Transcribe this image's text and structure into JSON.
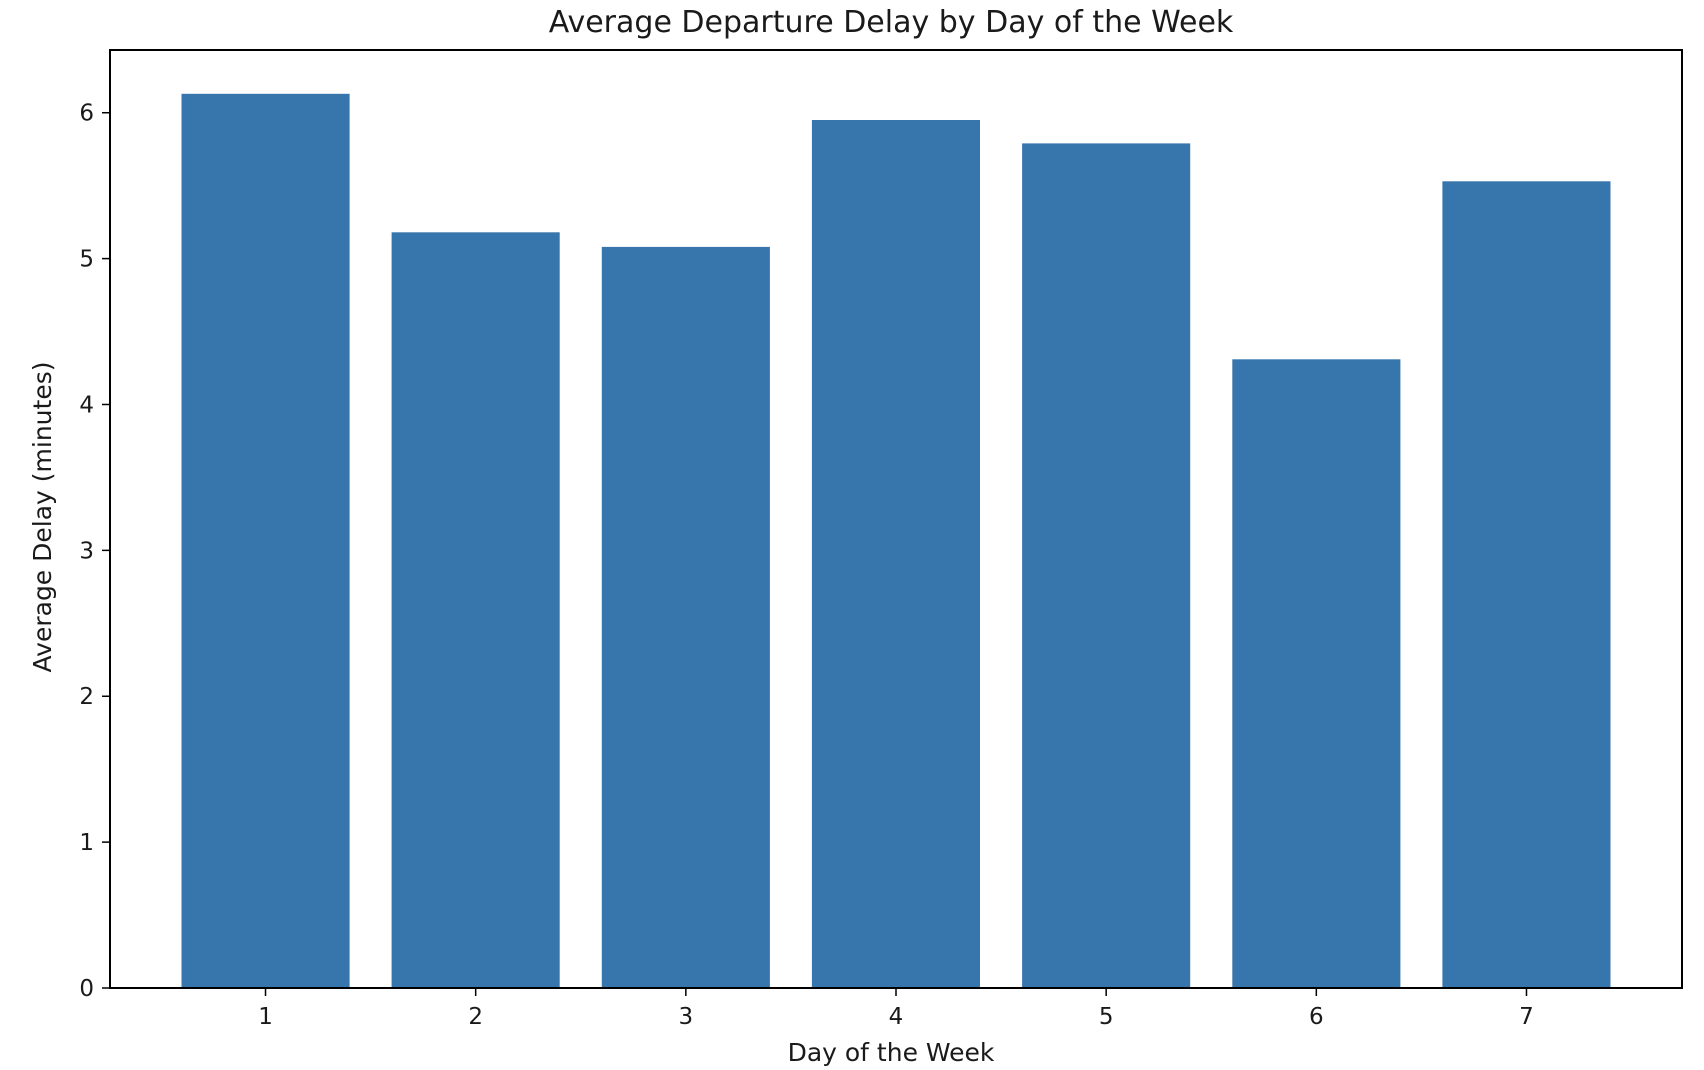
{
  "chart_data": {
    "type": "bar",
    "title": "Average Departure Delay by Day of the Week",
    "xlabel": "Day of the Week",
    "ylabel": "Average Delay (minutes)",
    "categories": [
      "1",
      "2",
      "3",
      "4",
      "5",
      "6",
      "7"
    ],
    "values": [
      6.13,
      5.18,
      5.08,
      5.95,
      5.79,
      4.31,
      5.53
    ],
    "ylim": [
      0,
      6.43
    ],
    "yticks": [
      0,
      1,
      2,
      3,
      4,
      5,
      6
    ],
    "grid": false,
    "bar_color": "#3775ad",
    "axis_color": "#000000",
    "text_color": "#1a1a1a"
  }
}
